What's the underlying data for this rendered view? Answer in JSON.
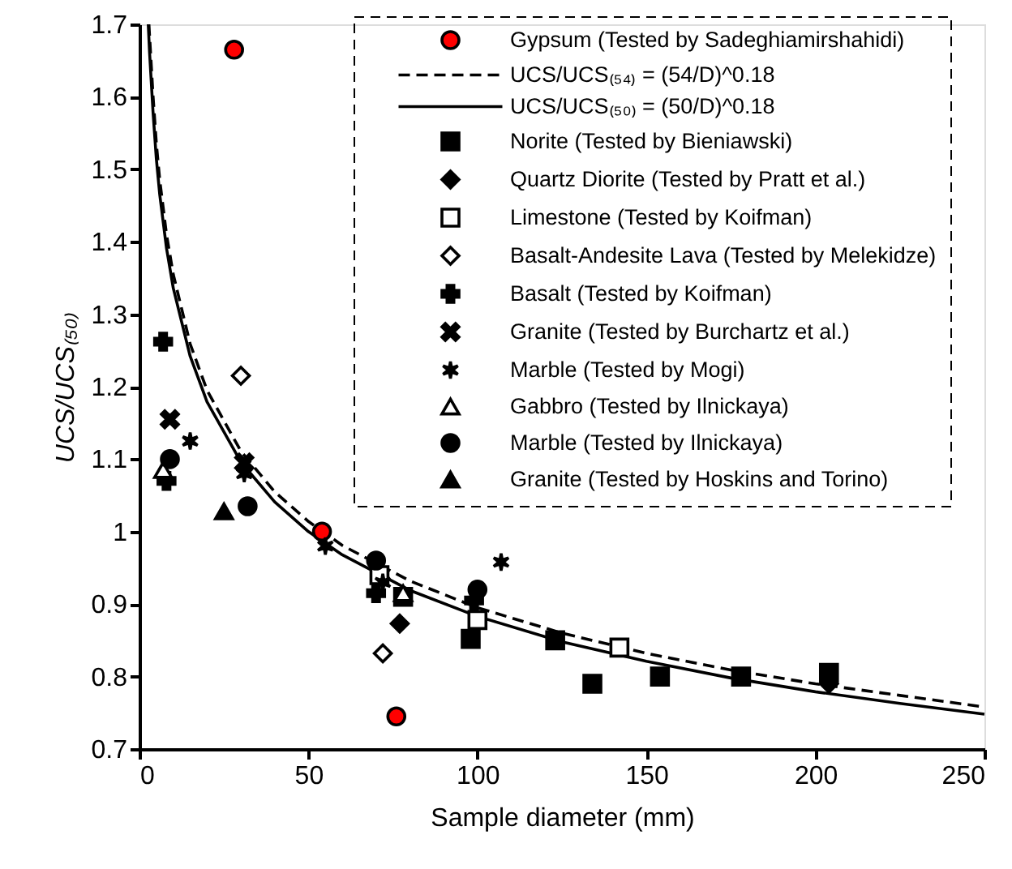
{
  "chart_data": {
    "type": "scatter",
    "xlabel": "Sample diameter (mm)",
    "ylabel": "UCS/UCS₍₅₀₎",
    "xlim": [
      0,
      250
    ],
    "xticks": [
      0,
      50,
      100,
      150,
      200,
      250
    ],
    "ylim": [
      0.7,
      1.7
    ],
    "yticks": [
      0.7,
      0.8,
      0.9,
      1,
      1.1,
      1.2,
      1.3,
      1.4,
      1.5,
      1.6,
      1.7
    ],
    "legend": "top right",
    "series": [
      {
        "name": "Gypsum (Tested by Sadeghiamirshahidi)",
        "marker": "circle",
        "color": "#ff0000",
        "x": [
          28,
          54,
          76
        ],
        "values": [
          1.665,
          1.0,
          0.745
        ]
      },
      {
        "name": "UCS/UCS₍₅₄₎ = (54/D)^0.18",
        "type": "line",
        "line_style": "dashed",
        "color": "#000000",
        "x": [
          2.8,
          3,
          4,
          5,
          6,
          8,
          10,
          15,
          20,
          30,
          40,
          50,
          60,
          80,
          100,
          125,
          150,
          175,
          200,
          225,
          250
        ],
        "values": [
          1.7,
          1.683,
          1.602,
          1.535,
          1.485,
          1.41,
          1.355,
          1.259,
          1.195,
          1.111,
          1.055,
          1.014,
          0.981,
          0.932,
          0.895,
          0.86,
          0.832,
          0.809,
          0.79,
          0.774,
          0.758
        ]
      },
      {
        "name": "UCS/UCS₍₅₀₎ = (50/D)^0.18",
        "type": "line",
        "line_style": "solid",
        "color": "#000000",
        "x": [
          2.6,
          3,
          4,
          5,
          6,
          8,
          10,
          15,
          20,
          30,
          40,
          50,
          60,
          80,
          100,
          125,
          150,
          175,
          200,
          225,
          250
        ],
        "values": [
          1.7,
          1.66,
          1.58,
          1.514,
          1.465,
          1.391,
          1.336,
          1.242,
          1.179,
          1.096,
          1.041,
          1.0,
          0.968,
          0.919,
          0.883,
          0.848,
          0.821,
          0.798,
          0.779,
          0.763,
          0.748
        ]
      },
      {
        "name": "Norite (Tested by Bieniawski)",
        "marker": "square",
        "color": "#000000",
        "x": [
          78,
          98,
          123,
          134,
          154,
          178,
          204
        ],
        "values": [
          0.91,
          0.852,
          0.85,
          0.79,
          0.8,
          0.8,
          0.805
        ]
      },
      {
        "name": "Quartz Diorite (Tested by Pratt et al.)",
        "marker": "diamond",
        "color": "#000000",
        "x": [
          77,
          204
        ],
        "values": [
          0.873,
          0.79
        ]
      },
      {
        "name": "Limestone (Tested by Koifman)",
        "marker": "square",
        "color": "#ffffff",
        "x": [
          71,
          100,
          142
        ],
        "values": [
          0.94,
          0.878,
          0.84
        ]
      },
      {
        "name": "Basalt-Andesite Lava (Tested by Melekidze)",
        "marker": "diamond",
        "color": "#ffffff",
        "x": [
          30,
          72
        ],
        "values": [
          1.215,
          0.832
        ]
      },
      {
        "name": "Basalt (Tested by Koifman)",
        "marker": "cross",
        "color": "#000000",
        "x": [
          7,
          8,
          70,
          99
        ],
        "values": [
          1.262,
          1.07,
          0.915,
          0.905
        ]
      },
      {
        "name": "Granite (Tested by Burchartz et al.)",
        "marker": "x",
        "color": "#000000",
        "x": [
          9,
          31
        ],
        "values": [
          1.155,
          1.095
        ]
      },
      {
        "name": "Marble (Tested by Mogi)",
        "color": "#000000",
        "x": [
          15,
          31,
          55,
          72,
          107
        ],
        "values": [
          1.125,
          1.08,
          0.98,
          0.93,
          0.958
        ]
      },
      {
        "name": "Gabbro (Tested by Ilnickaya)",
        "marker": "triangle",
        "color": "#ffffff",
        "x": [
          7,
          78
        ],
        "values": [
          1.085,
          0.915
        ]
      },
      {
        "name": "Marble  (Tested by Ilnickaya)",
        "marker": "circle",
        "color": "#000000",
        "x": [
          9,
          32,
          70,
          100
        ],
        "values": [
          1.1,
          1.035,
          0.96,
          0.92
        ]
      },
      {
        "name": "Granite (Tested by Hoskins and Torino)",
        "marker": "triangle",
        "color": "#000000",
        "x": [
          25
        ],
        "values": [
          1.028
        ]
      }
    ]
  }
}
